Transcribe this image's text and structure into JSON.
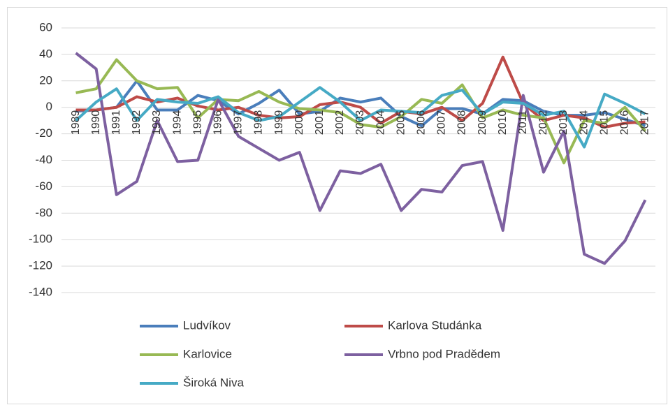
{
  "chart_data": {
    "type": "line",
    "categories": [
      "1989",
      "1990",
      "1991",
      "1992",
      "1993",
      "1994",
      "1995",
      "1996",
      "1997",
      "1998",
      "1999",
      "2000",
      "2001",
      "2002",
      "2003",
      "2004",
      "2005",
      "2006",
      "2007",
      "2008",
      "2009",
      "2010",
      "2011",
      "2012",
      "2013",
      "2014",
      "2015",
      "2016",
      "2017"
    ],
    "series": [
      {
        "name": "Ludvíkov",
        "color": "#4a7ebb",
        "values": [
          -3,
          -2,
          0,
          20,
          -2,
          -2,
          9,
          5,
          -5,
          3,
          13,
          -5,
          -3,
          7,
          4,
          7,
          -7,
          -14,
          -1,
          -1,
          -5,
          6,
          5,
          -3,
          -6,
          -6,
          -4,
          -9,
          -14
        ]
      },
      {
        "name": "Karlova Studánka",
        "color": "#be4b48",
        "values": [
          -2,
          -2,
          0,
          8,
          4,
          7,
          1,
          -2,
          0,
          -6,
          -8,
          -7,
          2,
          4,
          0,
          -12,
          -3,
          -5,
          0,
          -10,
          3,
          38,
          3,
          -10,
          -6,
          -8,
          -15,
          -12,
          -11
        ]
      },
      {
        "name": "Karlovice",
        "color": "#98b954",
        "values": [
          11,
          14,
          36,
          20,
          14,
          15,
          -8,
          6,
          5,
          12,
          4,
          -1,
          -2,
          -4,
          -13,
          -15,
          -7,
          6,
          3,
          17,
          -8,
          -2,
          -6,
          -8,
          -42,
          -10,
          -12,
          0,
          -18
        ]
      },
      {
        "name": "Vrbno pod Pradědem",
        "color": "#7d60a0",
        "values": [
          41,
          29,
          -66,
          -56,
          -10,
          -41,
          -40,
          6,
          -22,
          -31,
          -40,
          -34,
          -78,
          -48,
          -50,
          -43,
          -78,
          -62,
          -64,
          -44,
          -41,
          -93,
          9,
          -49,
          -18,
          -111,
          -118,
          -101,
          -70
        ]
      },
      {
        "name": "Široká Niva",
        "color": "#46aac5",
        "values": [
          -10,
          4,
          14,
          -10,
          6,
          4,
          3,
          8,
          -4,
          -10,
          -7,
          4,
          15,
          4,
          -10,
          -2,
          -3,
          -4,
          9,
          13,
          -5,
          4,
          3,
          -6,
          -3,
          -30,
          10,
          3,
          -5
        ]
      }
    ],
    "ylim": [
      -140,
      60
    ],
    "yticks": [
      -140,
      -120,
      -100,
      -80,
      -60,
      -40,
      -20,
      0,
      20,
      40,
      60
    ],
    "grid": true,
    "legend": "bottom"
  }
}
